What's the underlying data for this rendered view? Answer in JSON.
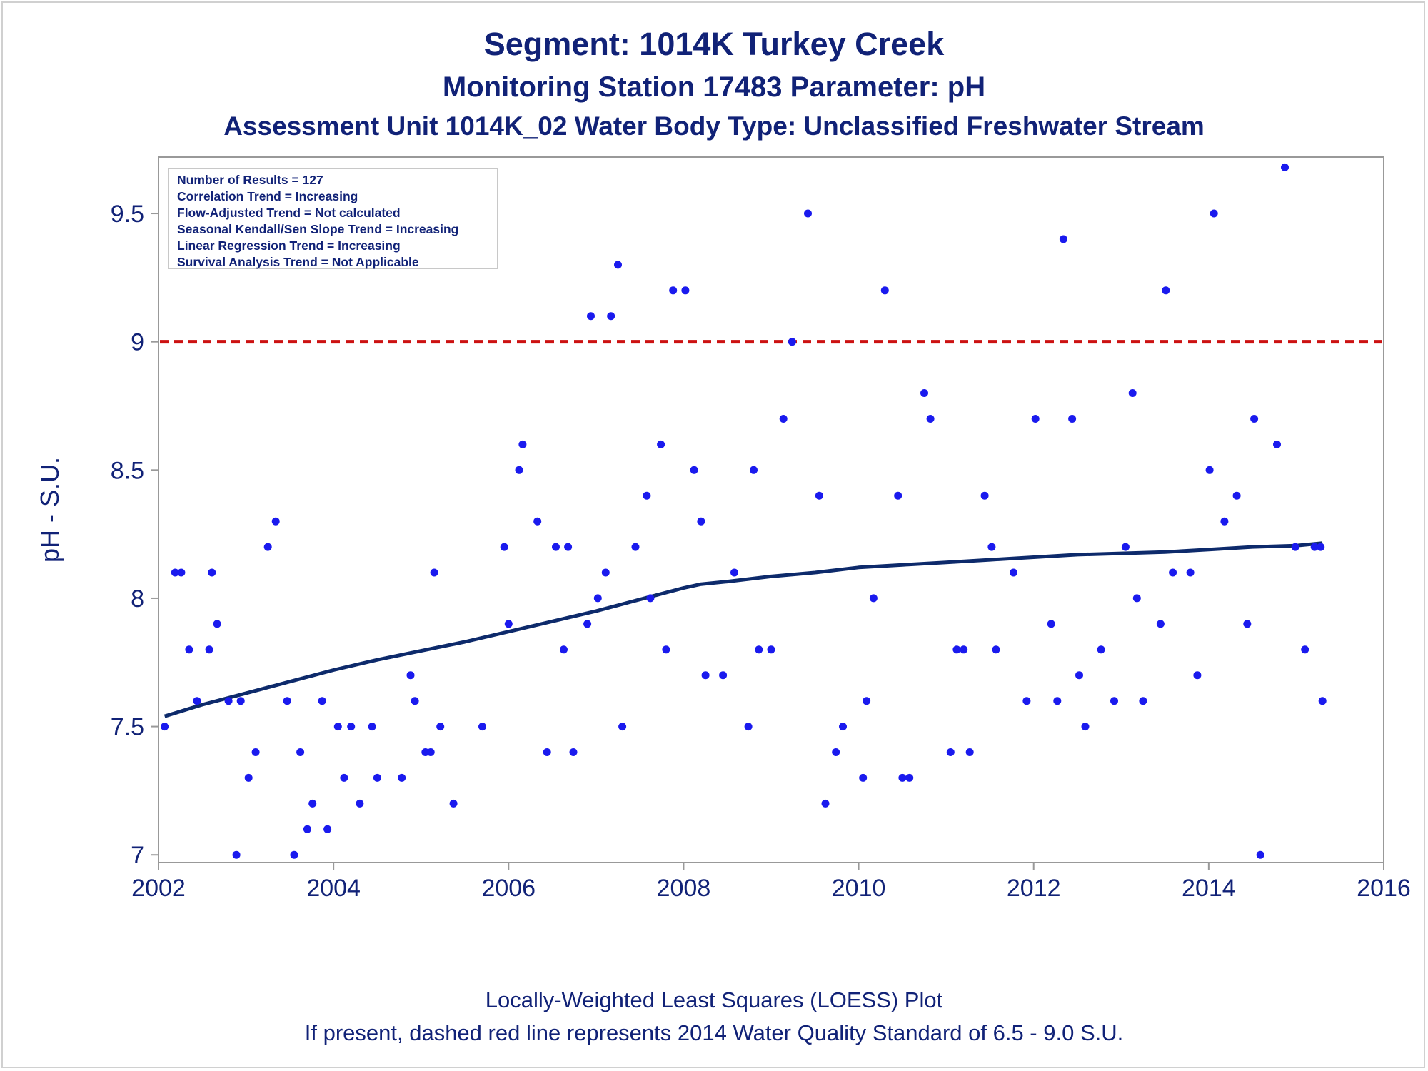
{
  "titles": {
    "line1": "Segment: 1014K  Turkey Creek",
    "line2": "Monitoring Station 17483 Parameter: pH",
    "line3": "Assessment Unit 1014K_02   Water Body Type: Unclassified Freshwater Stream"
  },
  "footnotes": {
    "line1": "Locally-Weighted Least Squares (LOESS) Plot",
    "line2": "If present, dashed red line represents 2014 Water Quality Standard of 6.5 - 9.0 S.U."
  },
  "stats": [
    "Number of Results = 127",
    "Correlation Trend = Increasing",
    "Flow-Adjusted Trend = Not calculated",
    "Seasonal Kendall/Sen Slope Trend = Increasing",
    "Linear Regression Trend = Increasing",
    "Survival Analysis Trend = Not Applicable"
  ],
  "colors": {
    "points": "#1a1aee",
    "loess": "#0d2a6b",
    "standard_line": "#cc1111",
    "text": "#112277",
    "axis": "#999999"
  },
  "chart_data": {
    "type": "scatter",
    "xlabel": "",
    "ylabel": "pH - S.U.",
    "xlim": [
      2002,
      2016
    ],
    "ylim": [
      6.97,
      9.72
    ],
    "xticks": [
      "2002",
      "2004",
      "2006",
      "2008",
      "2010",
      "2012",
      "2014",
      "2016"
    ],
    "yticks": [
      "7",
      "7.5",
      "8",
      "8.5",
      "9",
      "9.5"
    ],
    "grid": false,
    "standard_line": {
      "y": 9.0,
      "style": "dashed"
    },
    "series": [
      {
        "x": [
          2002.07,
          2002.19,
          2002.26,
          2002.35,
          2002.44,
          2002.58,
          2002.61,
          2002.67,
          2002.8,
          2002.89,
          2002.94,
          2003.03,
          2003.11,
          2003.25,
          2003.34,
          2003.47,
          2003.55,
          2003.62,
          2003.7,
          2003.76,
          2003.87,
          2003.93,
          2004.05,
          2004.12,
          2004.2,
          2004.3,
          2004.44,
          2004.5,
          2004.78,
          2004.88,
          2004.93,
          2005.05,
          2005.11,
          2005.15,
          2005.22,
          2005.37,
          2005.7,
          2005.95,
          2006.0,
          2006.12,
          2006.16,
          2006.33,
          2006.44,
          2006.54,
          2006.63,
          2006.68,
          2006.74,
          2006.9,
          2006.94,
          2007.02,
          2007.11,
          2007.17,
          2007.25,
          2007.3,
          2007.45,
          2007.58,
          2007.62,
          2007.74,
          2007.8,
          2007.88,
          2008.02,
          2008.12,
          2008.2,
          2008.25,
          2008.45,
          2008.58,
          2008.74,
          2008.8,
          2008.86,
          2009.0,
          2009.14,
          2009.24,
          2009.42,
          2009.55,
          2009.62,
          2009.74,
          2009.82,
          2010.05,
          2010.09,
          2010.17,
          2010.3,
          2010.45,
          2010.5,
          2010.58,
          2010.75,
          2010.82,
          2011.05,
          2011.12,
          2011.2,
          2011.27,
          2011.44,
          2011.52,
          2011.57,
          2011.77,
          2011.92,
          2012.02,
          2012.2,
          2012.27,
          2012.34,
          2012.44,
          2012.52,
          2012.59,
          2012.77,
          2012.92,
          2013.05,
          2013.13,
          2013.18,
          2013.25,
          2013.45,
          2013.51,
          2013.59,
          2013.79,
          2013.87,
          2014.01,
          2014.06,
          2014.18,
          2014.32,
          2014.44,
          2014.52,
          2014.59,
          2014.78,
          2014.87,
          2014.99,
          2015.1,
          2015.21,
          2015.28,
          2015.3
        ],
        "values": [
          7.5,
          8.1,
          8.1,
          7.8,
          7.6,
          7.8,
          8.1,
          7.9,
          7.6,
          7.0,
          7.6,
          7.3,
          7.4,
          8.2,
          8.3,
          7.6,
          7.0,
          7.4,
          7.1,
          7.2,
          7.6,
          7.1,
          7.5,
          7.3,
          7.5,
          7.2,
          7.5,
          7.3,
          7.3,
          7.7,
          7.6,
          7.4,
          7.4,
          8.1,
          7.5,
          7.2,
          7.5,
          8.2,
          7.9,
          8.5,
          8.6,
          8.3,
          7.4,
          8.2,
          7.8,
          8.2,
          7.4,
          7.9,
          9.1,
          8.0,
          8.1,
          9.1,
          9.3,
          7.5,
          8.2,
          8.4,
          8.0,
          8.6,
          7.8,
          9.2,
          9.2,
          8.5,
          8.3,
          7.7,
          7.7,
          8.1,
          7.5,
          8.5,
          7.8,
          7.8,
          8.7,
          9.0,
          9.5,
          8.4,
          7.2,
          7.4,
          7.5,
          7.3,
          7.6,
          8.0,
          9.2,
          8.4,
          7.3,
          7.3,
          8.8,
          8.7,
          7.4,
          7.8,
          7.8,
          7.4,
          8.4,
          8.2,
          7.8,
          8.1,
          7.6,
          8.7,
          7.9,
          7.6,
          9.4,
          8.7,
          7.7,
          7.5,
          7.8,
          7.6,
          8.2,
          8.8,
          8.0,
          7.6,
          7.9,
          9.2,
          8.1,
          8.1,
          7.7,
          8.5,
          9.5,
          8.3,
          8.4,
          7.9,
          8.7,
          7.0,
          8.6,
          9.68,
          8.2,
          7.8,
          8.2,
          8.2,
          7.6
        ]
      },
      {
        "type": "line",
        "x": [
          2002.07,
          2002.5,
          2003.0,
          2003.5,
          2004.0,
          2004.5,
          2005.0,
          2005.5,
          2006.0,
          2006.5,
          2007.0,
          2007.5,
          2008.0,
          2008.2,
          2008.5,
          2009.0,
          2009.5,
          2010.0,
          2010.5,
          2011.0,
          2011.5,
          2012.0,
          2012.5,
          2013.0,
          2013.5,
          2014.0,
          2014.5,
          2015.0,
          2015.3
        ],
        "values": [
          7.54,
          7.585,
          7.63,
          7.675,
          7.72,
          7.76,
          7.795,
          7.83,
          7.87,
          7.91,
          7.95,
          7.995,
          8.04,
          8.055,
          8.065,
          8.085,
          8.1,
          8.12,
          8.13,
          8.14,
          8.15,
          8.16,
          8.17,
          8.175,
          8.18,
          8.19,
          8.2,
          8.205,
          8.215
        ]
      }
    ]
  }
}
